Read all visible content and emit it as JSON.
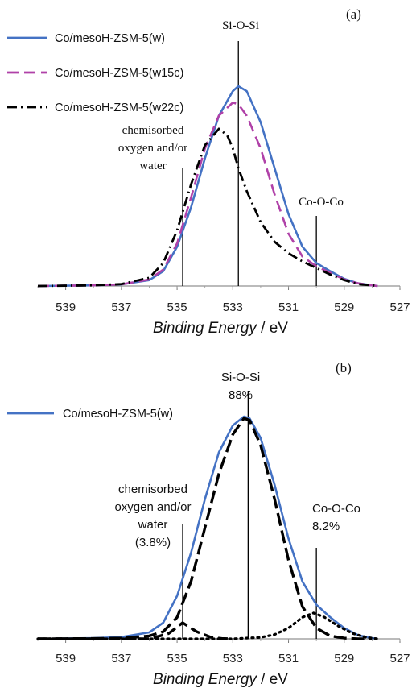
{
  "chart_data": [
    {
      "type": "line",
      "panel_label": "(a)",
      "xlabel": "Binding Energy",
      "xlabel_unit": "/ eV",
      "xlim": [
        540,
        527
      ],
      "x_ticks": [
        "539",
        "537",
        "535",
        "533",
        "531",
        "529",
        "527"
      ],
      "series": [
        {
          "name": "Co/mesoH-ZSM-5(w)",
          "color": "#4472c4",
          "style": "solid",
          "x": [
            540,
            538,
            537,
            536,
            535.5,
            535,
            534.5,
            534,
            533.5,
            533,
            532.8,
            532.5,
            532,
            531.5,
            531,
            530.5,
            530,
            529.5,
            529,
            528.5,
            528,
            527.8
          ],
          "y": [
            0,
            0.02,
            0.05,
            0.18,
            0.45,
            1.2,
            2.4,
            3.9,
            5.2,
            5.95,
            6.1,
            5.95,
            5.0,
            3.6,
            2.2,
            1.2,
            0.7,
            0.45,
            0.22,
            0.08,
            0.02,
            0
          ]
        },
        {
          "name": "Co/mesoH-ZSM-5(w15c)",
          "color": "#b041a8",
          "style": "dashed",
          "x": [
            540,
            538,
            537,
            536,
            535.5,
            535,
            534.5,
            534,
            533.5,
            533,
            532.8,
            532.5,
            532,
            531.5,
            531,
            530.5,
            530,
            529.5,
            529,
            528.5,
            528,
            527.8
          ],
          "y": [
            0,
            0.02,
            0.05,
            0.2,
            0.5,
            1.3,
            2.7,
            4.2,
            5.2,
            5.6,
            5.55,
            5.2,
            4.2,
            2.8,
            1.6,
            0.9,
            0.6,
            0.4,
            0.2,
            0.08,
            0.02,
            0
          ]
        },
        {
          "name": "Co/mesoH-ZSM-5(w22c)",
          "color": "#000000",
          "style": "dashdot",
          "x": [
            540,
            538,
            537,
            536,
            535.5,
            535,
            534.5,
            534,
            533.5,
            533.2,
            533,
            532.8,
            532.5,
            532,
            531.5,
            531,
            530.5,
            530,
            529.5,
            529,
            528.5,
            528,
            527.8
          ],
          "y": [
            0,
            0.02,
            0.06,
            0.25,
            0.7,
            1.7,
            3.1,
            4.3,
            4.8,
            4.6,
            4.2,
            3.6,
            2.9,
            1.95,
            1.35,
            1.0,
            0.75,
            0.55,
            0.35,
            0.18,
            0.06,
            0.02,
            0
          ]
        }
      ],
      "annotations": [
        {
          "text_lines": [
            "Si-O-Si"
          ],
          "x": 532.8
        },
        {
          "text_lines": [
            "chemisorbed",
            "oxygen and/or",
            "water"
          ],
          "x": 534.8
        },
        {
          "text_lines": [
            "Co-O-Co"
          ],
          "x": 530.0
        }
      ]
    },
    {
      "type": "line",
      "panel_label": "(b)",
      "xlabel": "Binding Energy",
      "xlabel_unit": "/ eV",
      "xlim": [
        540,
        527
      ],
      "x_ticks": [
        "539",
        "537",
        "535",
        "533",
        "531",
        "529",
        "527"
      ],
      "series": [
        {
          "name": "Co/mesoH-ZSM-5(w)",
          "color": "#4472c4",
          "style": "solid",
          "x": [
            540,
            538,
            537,
            536,
            535.5,
            535,
            534.5,
            534,
            533.5,
            533,
            532.6,
            532.4,
            532,
            531.5,
            531,
            530.5,
            530,
            529.5,
            529,
            528.5,
            528,
            527.8
          ],
          "y": [
            0,
            0.02,
            0.05,
            0.18,
            0.45,
            1.2,
            2.4,
            3.9,
            5.2,
            5.95,
            6.2,
            6.15,
            5.6,
            4.3,
            2.8,
            1.6,
            0.95,
            0.6,
            0.3,
            0.1,
            0.02,
            0
          ]
        },
        {
          "name": "",
          "color": "#000000",
          "style": "longdash",
          "x": [
            540,
            538,
            537,
            536,
            535.5,
            535,
            534.5,
            534,
            533.5,
            533,
            532.6,
            532.4,
            532,
            531.5,
            531,
            530.5,
            530,
            529.5,
            529,
            528.5,
            528
          ],
          "y": [
            0,
            0.01,
            0.02,
            0.08,
            0.2,
            0.6,
            1.6,
            3.1,
            4.6,
            5.7,
            6.15,
            6.1,
            5.4,
            3.9,
            2.2,
            0.9,
            0.3,
            0.08,
            0.02,
            0,
            0
          ]
        },
        {
          "name": "",
          "color": "#000000",
          "style": "dashed-heavy",
          "x": [
            540,
            536,
            535.3,
            534.8,
            534.3,
            533.8,
            533.4,
            533
          ],
          "y": [
            0,
            0,
            0.15,
            0.45,
            0.2,
            0.05,
            0.01,
            0
          ]
        },
        {
          "name": "",
          "color": "#000000",
          "style": "dotted",
          "x": [
            540,
            533,
            532,
            531.5,
            531,
            530.5,
            530.1,
            529.7,
            529.2,
            528.7,
            528.2,
            527.8
          ],
          "y": [
            0,
            0,
            0.04,
            0.12,
            0.3,
            0.6,
            0.72,
            0.6,
            0.35,
            0.15,
            0.04,
            0
          ]
        }
      ],
      "annotations": [
        {
          "text_lines": [
            "Si-O-Si",
            "88%"
          ],
          "x": 532.45
        },
        {
          "text_lines": [
            "chemisorbed",
            "oxygen and/or",
            "water",
            "(3.8%)"
          ],
          "x": 534.8
        },
        {
          "text_lines": [
            "Co-O-Co",
            "8.2%"
          ],
          "x": 530.0
        }
      ]
    }
  ]
}
